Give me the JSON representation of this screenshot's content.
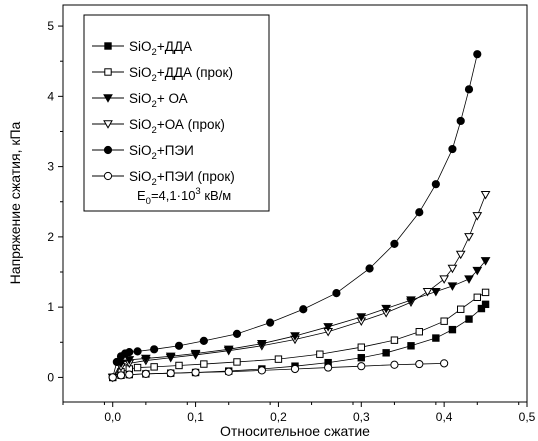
{
  "chart_data": {
    "type": "scatter",
    "xlabel": "Относительное сжатие",
    "ylabel": "Напряжение сжатия, кПа",
    "xlim": [
      -0.06,
      0.5
    ],
    "ylim": [
      -0.35,
      5.3
    ],
    "xticks": [
      {
        "value": 0.0,
        "label": "0,0"
      },
      {
        "value": 0.1,
        "label": "0,1"
      },
      {
        "value": 0.2,
        "label": "0,2"
      },
      {
        "value": 0.3,
        "label": "0,3"
      },
      {
        "value": 0.4,
        "label": "0,4"
      },
      {
        "value": 0.5,
        "label": "0,5"
      }
    ],
    "yticks": [
      {
        "value": 0,
        "label": "0"
      },
      {
        "value": 1,
        "label": "1"
      },
      {
        "value": 2,
        "label": "2"
      },
      {
        "value": 3,
        "label": "3"
      },
      {
        "value": 4,
        "label": "4"
      },
      {
        "value": 5,
        "label": "5"
      }
    ],
    "legend": {
      "position": "top-left",
      "note": {
        "main": "E",
        "sub": "0",
        "rest": "=4,1·10",
        "sup": "3",
        "tail": " кВ/м"
      }
    },
    "series": [
      {
        "name": "SiO2+ДДА (прок)",
        "name_parts": [
          "SiO",
          "2",
          "+ДДА (прок)"
        ],
        "marker": "square-open",
        "x": [
          0.0,
          0.01,
          0.02,
          0.03,
          0.05,
          0.08,
          0.11,
          0.15,
          0.2,
          0.25,
          0.3,
          0.34,
          0.37,
          0.4,
          0.42,
          0.44,
          0.45
        ],
        "y": [
          0.0,
          0.08,
          0.12,
          0.14,
          0.15,
          0.17,
          0.19,
          0.22,
          0.26,
          0.33,
          0.43,
          0.53,
          0.65,
          0.8,
          0.97,
          1.14,
          1.21
        ]
      },
      {
        "name": "SiO2+ДДА",
        "name_parts": [
          "SiO",
          "2",
          "+ДДА"
        ],
        "marker": "square-filled",
        "x": [
          0.0,
          0.01,
          0.02,
          0.04,
          0.07,
          0.1,
          0.14,
          0.18,
          0.22,
          0.26,
          0.3,
          0.33,
          0.36,
          0.39,
          0.41,
          0.43,
          0.445,
          0.45
        ],
        "y": [
          0.0,
          0.03,
          0.04,
          0.05,
          0.06,
          0.07,
          0.09,
          0.12,
          0.16,
          0.21,
          0.28,
          0.35,
          0.45,
          0.56,
          0.68,
          0.83,
          0.98,
          1.04
        ]
      },
      {
        "name": "SiO2+ОА (прок)",
        "name_parts": [
          "SiO",
          "2",
          "+ОА (прок)"
        ],
        "marker": "triangle-down-open",
        "x": [
          0.0,
          0.01,
          0.02,
          0.04,
          0.07,
          0.1,
          0.14,
          0.18,
          0.22,
          0.26,
          0.3,
          0.33,
          0.36,
          0.38,
          0.4,
          0.41,
          0.42,
          0.43,
          0.44,
          0.45
        ],
        "y": [
          0.0,
          0.15,
          0.2,
          0.24,
          0.28,
          0.32,
          0.38,
          0.45,
          0.54,
          0.65,
          0.8,
          0.92,
          1.07,
          1.22,
          1.4,
          1.55,
          1.75,
          2.0,
          2.3,
          2.6
        ]
      },
      {
        "name": "SiO2+ ОА",
        "name_parts": [
          "SiO",
          "2",
          "+ ОА"
        ],
        "marker": "triangle-down-filled",
        "x": [
          0.0,
          0.01,
          0.02,
          0.04,
          0.07,
          0.1,
          0.14,
          0.18,
          0.22,
          0.26,
          0.3,
          0.33,
          0.36,
          0.39,
          0.41,
          0.43,
          0.44,
          0.45
        ],
        "y": [
          0.0,
          0.2,
          0.25,
          0.27,
          0.3,
          0.34,
          0.4,
          0.48,
          0.59,
          0.72,
          0.86,
          0.98,
          1.1,
          1.22,
          1.3,
          1.4,
          1.52,
          1.66
        ]
      },
      {
        "name": "SiO2+ПЭИ",
        "name_parts": [
          "SiO",
          "2",
          "+ПЭИ"
        ],
        "marker": "circle-filled",
        "x": [
          0.0,
          0.005,
          0.01,
          0.015,
          0.02,
          0.03,
          0.05,
          0.08,
          0.11,
          0.15,
          0.19,
          0.23,
          0.27,
          0.31,
          0.34,
          0.37,
          0.39,
          0.41,
          0.42,
          0.43,
          0.44
        ],
        "y": [
          0.0,
          0.22,
          0.3,
          0.34,
          0.36,
          0.37,
          0.4,
          0.45,
          0.52,
          0.62,
          0.78,
          0.97,
          1.2,
          1.55,
          1.9,
          2.35,
          2.75,
          3.25,
          3.65,
          4.1,
          4.6
        ]
      },
      {
        "name": "SiO2+ПЭИ (прок)",
        "name_parts": [
          "SiO",
          "2",
          "+ПЭИ (прок)"
        ],
        "marker": "circle-open",
        "x": [
          0.0,
          0.01,
          0.02,
          0.04,
          0.07,
          0.1,
          0.14,
          0.18,
          0.22,
          0.26,
          0.3,
          0.34,
          0.37,
          0.4
        ],
        "y": [
          0.0,
          0.03,
          0.04,
          0.05,
          0.06,
          0.07,
          0.08,
          0.1,
          0.12,
          0.14,
          0.16,
          0.18,
          0.19,
          0.2
        ]
      }
    ]
  }
}
